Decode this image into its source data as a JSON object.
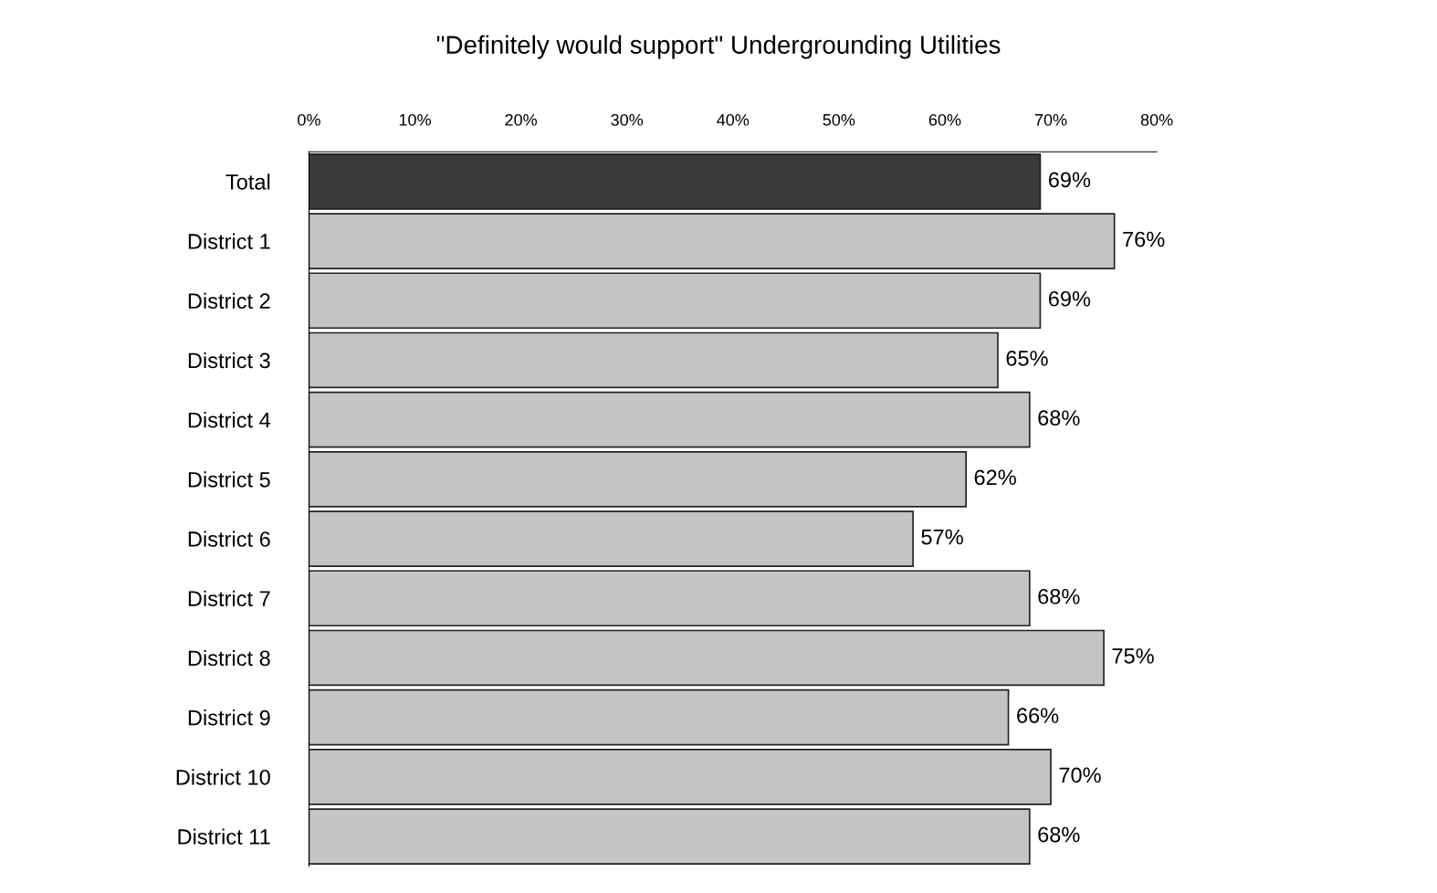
{
  "chart_data": {
    "type": "bar",
    "orientation": "horizontal",
    "title": "\"Definitely would support\" Undergrounding Utilities",
    "categories": [
      "Total",
      "District 1",
      "District 2",
      "District 3",
      "District 4",
      "District 5",
      "District 6",
      "District 7",
      "District 8",
      "District 9",
      "District 10",
      "District 11"
    ],
    "values": [
      69,
      76,
      69,
      65,
      68,
      62,
      57,
      68,
      75,
      66,
      70,
      68
    ],
    "value_labels": [
      "69%",
      "76%",
      "69%",
      "65%",
      "68%",
      "62%",
      "57%",
      "68%",
      "75%",
      "66%",
      "70%",
      "68%"
    ],
    "colors": [
      "#3a3a3a",
      "#c4c4c4",
      "#c4c4c4",
      "#c4c4c4",
      "#c4c4c4",
      "#c4c4c4",
      "#c4c4c4",
      "#c4c4c4",
      "#c4c4c4",
      "#c4c4c4",
      "#c4c4c4",
      "#c4c4c4"
    ],
    "xlim": [
      0,
      80
    ],
    "xticks": [
      {
        "value": 0,
        "label": "0%"
      },
      {
        "value": 10,
        "label": "10%"
      },
      {
        "value": 20,
        "label": "20%"
      },
      {
        "value": 30,
        "label": "30%"
      },
      {
        "value": 40,
        "label": "40%"
      },
      {
        "value": 50,
        "label": "50%"
      },
      {
        "value": 60,
        "label": "60%"
      },
      {
        "value": 70,
        "label": "70%"
      },
      {
        "value": 80,
        "label": "80%"
      }
    ],
    "grid": false,
    "legend": false
  }
}
